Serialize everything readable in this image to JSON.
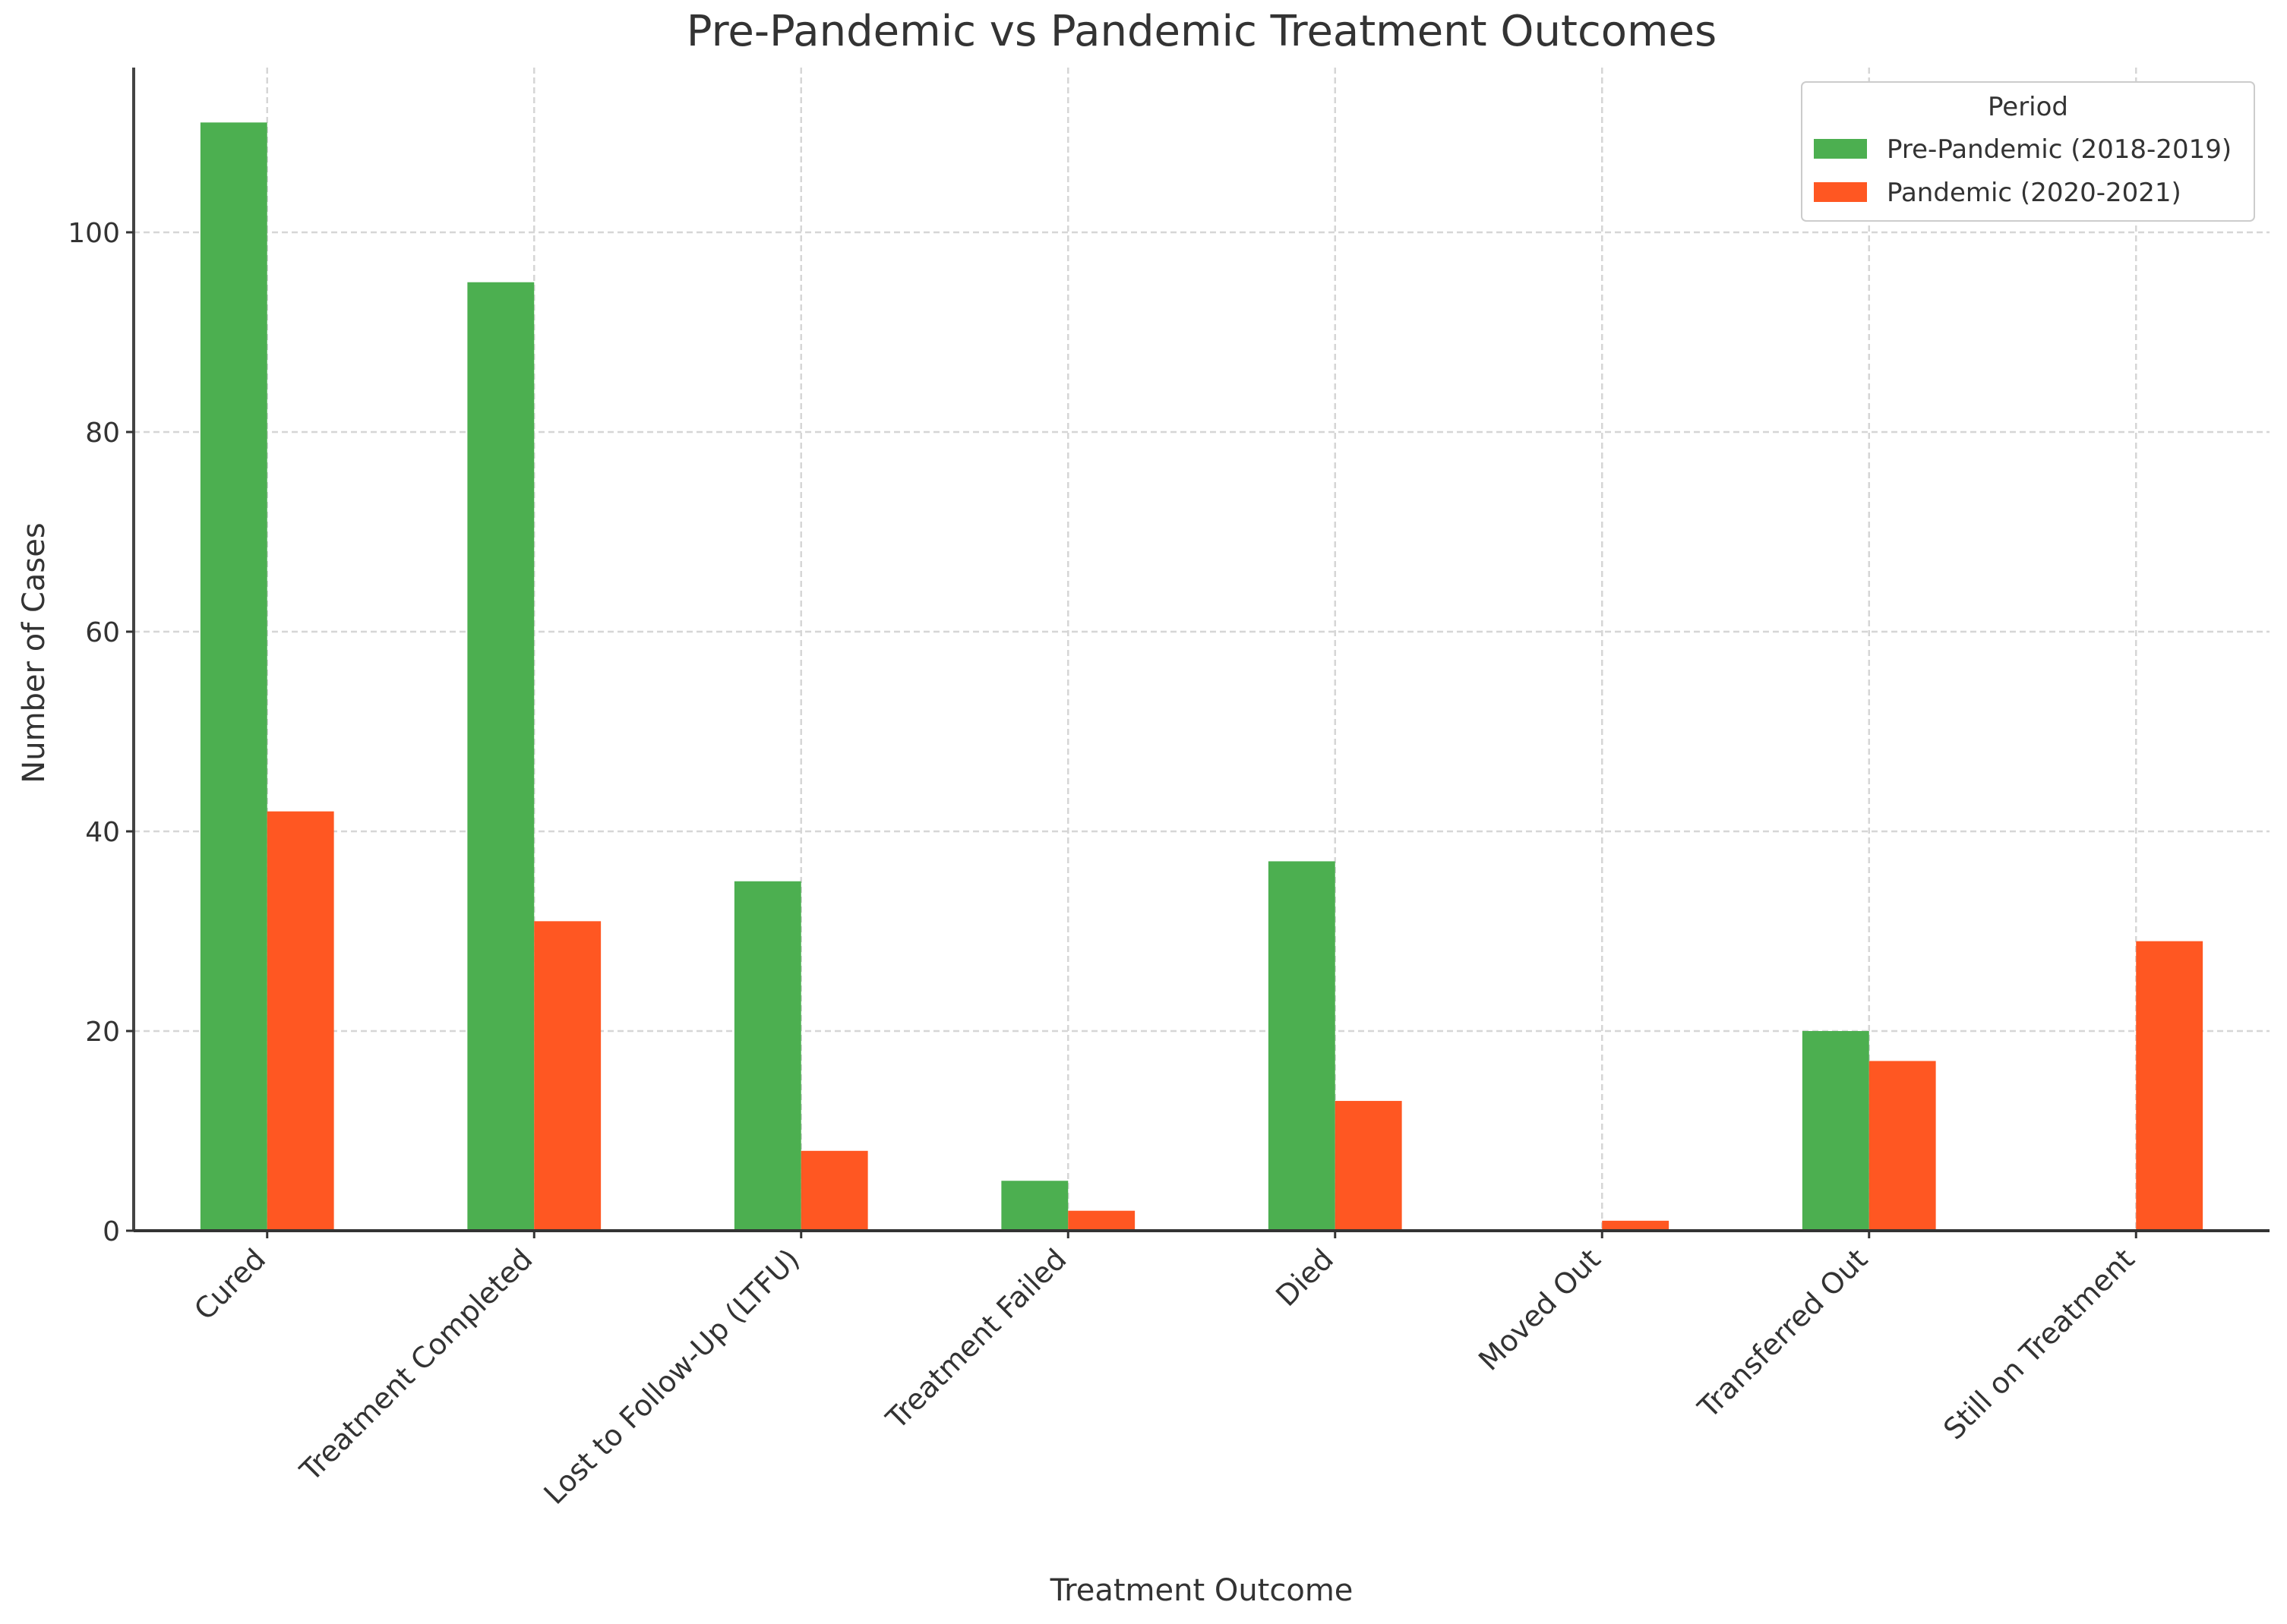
{
  "chart_data": {
    "type": "bar",
    "title": "Pre-Pandemic vs Pandemic Treatment Outcomes",
    "xlabel": "Treatment Outcome",
    "ylabel": "Number of Cases",
    "categories": [
      "Cured",
      "Treatment Completed",
      "Lost to Follow-Up (LTFU)",
      "Treatment Failed",
      "Died",
      "Moved Out",
      "Transferred Out",
      "Still on Treatment"
    ],
    "series": [
      {
        "name": "Pre-Pandemic (2018-2019)",
        "color": "#4caf50",
        "values": [
          111,
          95,
          35,
          5,
          37,
          0,
          20,
          0
        ]
      },
      {
        "name": "Pandemic (2020-2021)",
        "color": "#ff5722",
        "values": [
          42,
          31,
          8,
          2,
          13,
          1,
          17,
          29
        ]
      }
    ],
    "ylim": [
      0,
      116.5
    ],
    "yticks": [
      0,
      20,
      40,
      60,
      80,
      100
    ],
    "grid": true,
    "legend": {
      "title": "Period",
      "placement": "top-right"
    }
  }
}
